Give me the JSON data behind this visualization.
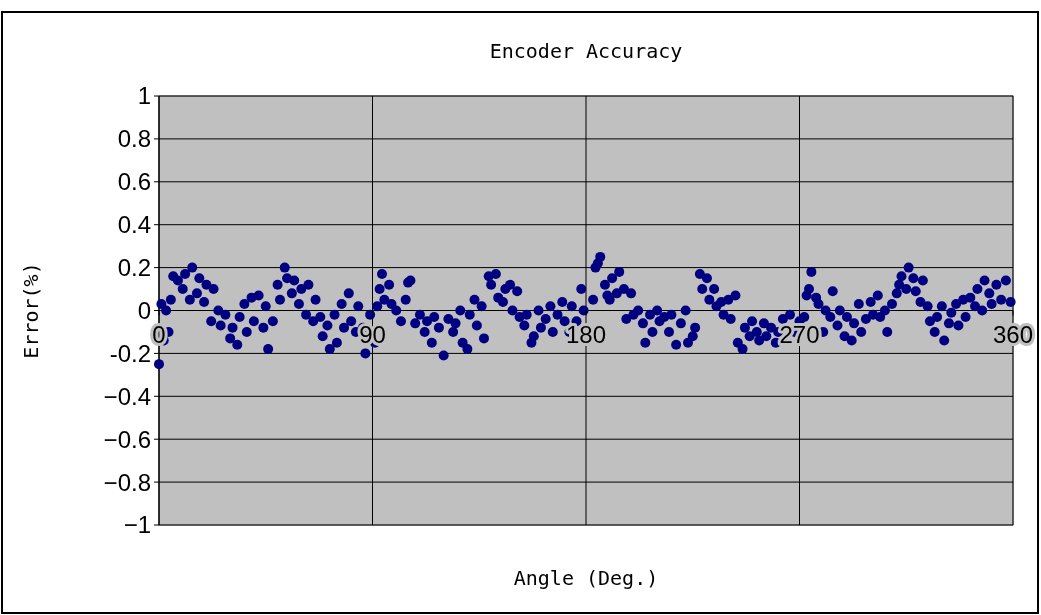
{
  "chart_data": {
    "type": "scatter",
    "title": "Encoder Accuracy",
    "xlabel": "Angle (Deg.)",
    "ylabel": "Error(%)",
    "xlim": [
      0,
      360
    ],
    "xticks": [
      0,
      90,
      180,
      270,
      360
    ],
    "ylim": [
      -1,
      1
    ],
    "yticks": [
      {
        "value": -1,
        "label": "−1"
      },
      {
        "value": -0.8,
        "label": "−0.8"
      },
      {
        "value": -0.6,
        "label": "−0.6"
      },
      {
        "value": -0.4,
        "label": "−0.4"
      },
      {
        "value": -0.2,
        "label": "-0.2"
      },
      0,
      0.2,
      0.4,
      0.6,
      0.8,
      1
    ],
    "grid": true,
    "marker": "circle",
    "series": [
      {
        "color": "#000080",
        "x": [
          0,
          1,
          2,
          3,
          4,
          5,
          6,
          8,
          10,
          11,
          13,
          14,
          16,
          17,
          19,
          20,
          22,
          23,
          25,
          26,
          28,
          30,
          31,
          33,
          34,
          36,
          37,
          39,
          40,
          42,
          44,
          45,
          46,
          48,
          50,
          51,
          53,
          54,
          56,
          57,
          59,
          60,
          62,
          63,
          65,
          66,
          68,
          69,
          71,
          72,
          74,
          75,
          77,
          78,
          80,
          81,
          83,
          84,
          86,
          87,
          89,
          91,
          92,
          93,
          94,
          95,
          97,
          98,
          100,
          102,
          104,
          105,
          106,
          108,
          110,
          112,
          113,
          115,
          116,
          118,
          120,
          122,
          124,
          125,
          127,
          128,
          130,
          131,
          133,
          134,
          136,
          137,
          139,
          140,
          142,
          143,
          145,
          146,
          148,
          149,
          151,
          152,
          154,
          155,
          157,
          158,
          160,
          161,
          163,
          165,
          166,
          168,
          170,
          171,
          173,
          174,
          176,
          178,
          179,
          183,
          184,
          185,
          186,
          188,
          189,
          190,
          191,
          193,
          194,
          196,
          197,
          199,
          200,
          202,
          204,
          205,
          207,
          208,
          210,
          211,
          213,
          215,
          216,
          218,
          220,
          222,
          223,
          225,
          226,
          228,
          229,
          231,
          232,
          234,
          235,
          237,
          238,
          240,
          241,
          243,
          244,
          246,
          247,
          249,
          250,
          252,
          253,
          255,
          256,
          258,
          260,
          261,
          263,
          266,
          268,
          270,
          272,
          273,
          274,
          275,
          277,
          278,
          280,
          281,
          283,
          284,
          286,
          287,
          289,
          290,
          292,
          293,
          295,
          296,
          298,
          300,
          301,
          303,
          304,
          306,
          307,
          309,
          311,
          312,
          313,
          315,
          316,
          318,
          319,
          321,
          322,
          324,
          325,
          327,
          328,
          330,
          331,
          333,
          334,
          336,
          337,
          339,
          340,
          342,
          344,
          345,
          347,
          348,
          350,
          351,
          353,
          355,
          357,
          359
        ],
        "values": [
          -0.25,
          0.03,
          -0.14,
          0,
          -0.1,
          0.05,
          0.16,
          0.14,
          0.1,
          0.17,
          0.05,
          0.2,
          0.08,
          0.15,
          0.04,
          0.12,
          -0.05,
          0.1,
          0,
          -0.07,
          -0.02,
          -0.13,
          -0.08,
          -0.16,
          -0.03,
          0.03,
          -0.1,
          0.06,
          -0.05,
          0.07,
          -0.08,
          0.02,
          -0.18,
          -0.05,
          0.12,
          0.05,
          0.2,
          0.15,
          0.08,
          0.14,
          0.03,
          0.1,
          -0.02,
          0.12,
          -0.05,
          0.05,
          -0.03,
          -0.12,
          -0.07,
          -0.18,
          -0.02,
          -0.15,
          0.03,
          -0.08,
          0.08,
          -0.05,
          -0.1,
          0.02,
          -0.08,
          -0.2,
          -0.02,
          -0.15,
          0.02,
          0.1,
          0.17,
          0.05,
          0.12,
          0.03,
          0,
          -0.05,
          0.05,
          0.13,
          0.14,
          -0.06,
          -0.02,
          -0.1,
          -0.05,
          -0.15,
          -0.03,
          -0.08,
          -0.21,
          -0.04,
          -0.1,
          -0.06,
          0,
          -0.15,
          -0.18,
          -0.02,
          0.05,
          -0.07,
          0.02,
          -0.13,
          0.16,
          0.12,
          0.17,
          0.06,
          0.04,
          0.1,
          0.12,
          0,
          0.09,
          -0.03,
          -0.07,
          -0.02,
          -0.15,
          -0.12,
          0,
          -0.08,
          -0.04,
          0.02,
          -0.1,
          -0.02,
          0.04,
          -0.05,
          -0.1,
          0.02,
          -0.05,
          0.1,
          0,
          0.05,
          0.2,
          0.22,
          0.25,
          0.12,
          0.07,
          0.05,
          0.15,
          0.08,
          0.18,
          0.1,
          -0.04,
          0.08,
          -0.02,
          0,
          -0.06,
          -0.15,
          -0.02,
          -0.1,
          0,
          -0.05,
          -0.03,
          -0.1,
          -0.02,
          -0.16,
          -0.06,
          0,
          -0.15,
          -0.12,
          -0.08,
          0.17,
          0.1,
          0.15,
          0.05,
          0.1,
          0.02,
          0.04,
          -0.02,
          0.05,
          -0.04,
          0.07,
          -0.15,
          -0.18,
          -0.08,
          -0.12,
          -0.05,
          -0.1,
          -0.14,
          -0.06,
          -0.12,
          -0.08,
          -0.15,
          -0.1,
          -0.04,
          -0.02,
          -0.1,
          -0.05,
          -0.03,
          0.07,
          0.1,
          0.18,
          0.06,
          0.03,
          -0.1,
          0,
          -0.03,
          0.09,
          -0.07,
          0,
          -0.12,
          -0.03,
          -0.14,
          -0.06,
          0.03,
          -0.1,
          -0.04,
          0.04,
          -0.02,
          0.07,
          -0.03,
          0,
          -0.1,
          0.03,
          0.08,
          0.12,
          0.16,
          0.1,
          0.2,
          0.15,
          0.09,
          0.04,
          0.14,
          0.02,
          -0.05,
          -0.1,
          -0.03,
          0.02,
          -0.14,
          -0.06,
          -0.01,
          0.03,
          -0.07,
          0.05,
          -0.03,
          0.06,
          0.02,
          0.1,
          0,
          0.14,
          0.08,
          0.03,
          0.12,
          0.05,
          0.14,
          0.04
        ]
      }
    ]
  }
}
